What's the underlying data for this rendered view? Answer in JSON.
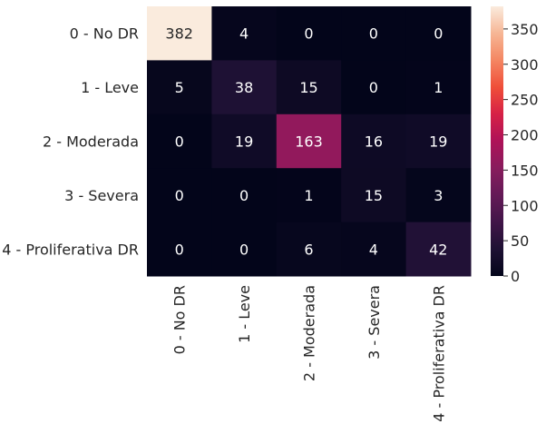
{
  "chart_data": {
    "type": "heatmap",
    "title": "",
    "xlabel": "",
    "ylabel": "",
    "row_labels": [
      "0 - No DR",
      "1 - Leve",
      "2 - Moderada",
      "3 - Severa",
      "4 - Proliferativa DR"
    ],
    "col_labels": [
      "0 - No DR",
      "1 - Leve",
      "2 - Moderada",
      "3 - Severa",
      "4 - Proliferativa DR"
    ],
    "values": [
      [
        382,
        4,
        0,
        0,
        0
      ],
      [
        5,
        38,
        15,
        0,
        1
      ],
      [
        0,
        19,
        163,
        16,
        19
      ],
      [
        0,
        0,
        1,
        15,
        3
      ],
      [
        0,
        0,
        6,
        4,
        42
      ]
    ],
    "value_range": [
      0,
      382
    ],
    "colorbar": {
      "ticks": [
        0,
        50,
        100,
        150,
        200,
        250,
        300,
        350
      ],
      "colormap": "rocket"
    },
    "grid": false
  }
}
